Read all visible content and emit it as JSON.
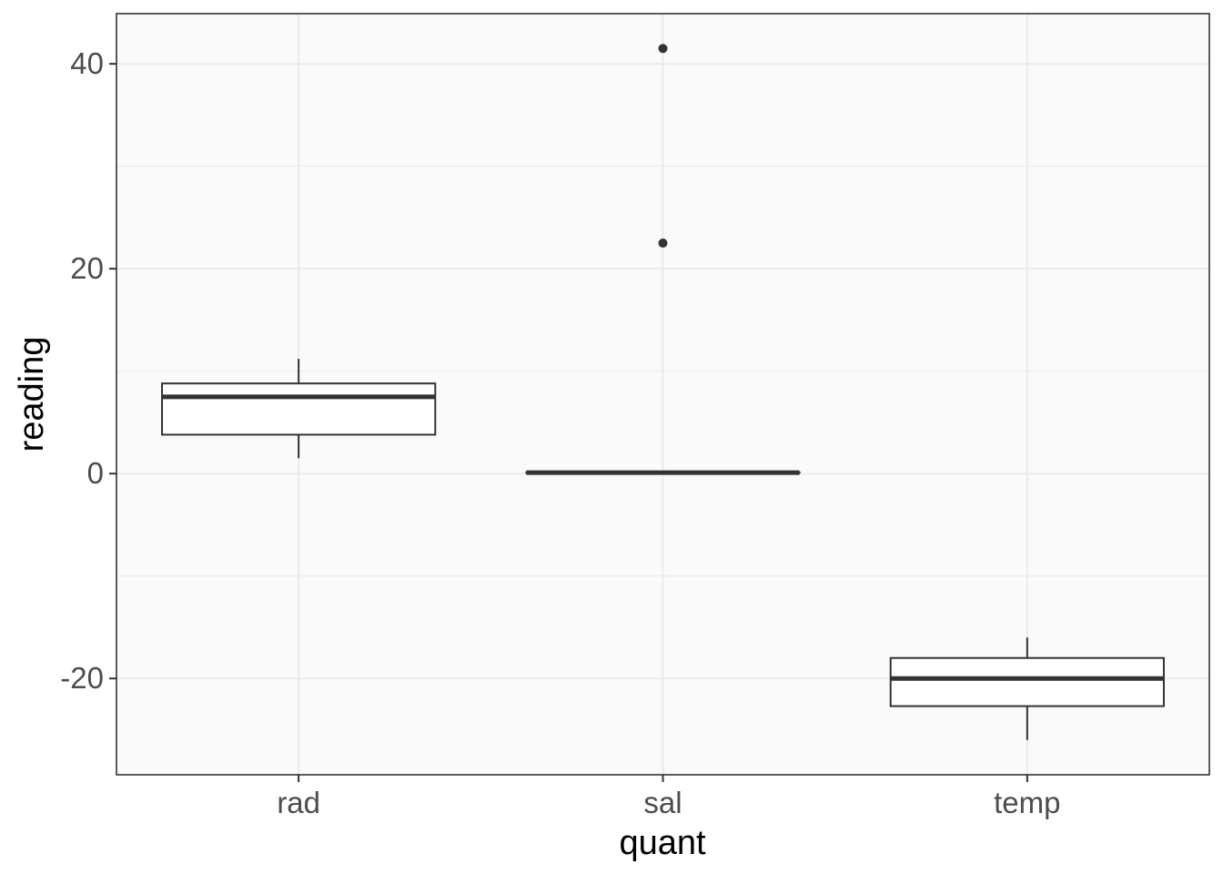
{
  "chart_data": {
    "type": "boxplot",
    "xlabel": "quant",
    "ylabel": "reading",
    "categories": [
      "rad",
      "sal",
      "temp"
    ],
    "ylim": [
      -29.4,
      44.9
    ],
    "y_ticks": [
      -20,
      0,
      20,
      40
    ],
    "y_minor_ticks": [
      -10,
      10,
      30
    ],
    "grid": true,
    "boxes": [
      {
        "category": "rad",
        "whisker_low": 1.5,
        "q1": 3.8,
        "median": 7.5,
        "q3": 8.8,
        "whisker_high": 11.2,
        "outliers": []
      },
      {
        "category": "sal",
        "whisker_low": 0.1,
        "q1": 0.1,
        "median": 0.1,
        "q3": 0.1,
        "whisker_high": 0.1,
        "outliers": [
          22.5,
          41.5
        ]
      },
      {
        "category": "temp",
        "whisker_low": -26.0,
        "q1": -22.7,
        "median": -20.0,
        "q3": -18.0,
        "whisker_high": -16.0,
        "outliers": []
      }
    ],
    "colors": {
      "panel": "#fafafa",
      "grid": "#ebebeb",
      "box_line": "#333333"
    }
  }
}
